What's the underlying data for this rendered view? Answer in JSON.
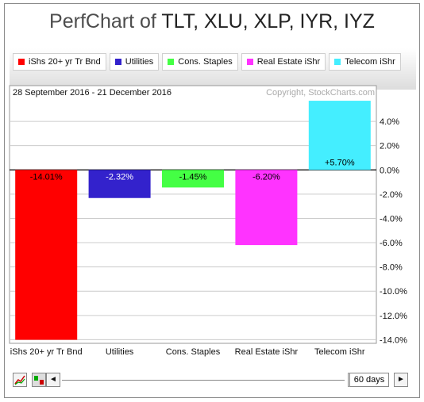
{
  "title": {
    "prefix": "PerfChart of",
    "symbols": "TLT, XLU, XLP, IYR, IYZ"
  },
  "date_range": "28 September 2016 - 21 December 2016",
  "copyright": "Copyright, StockCharts.com",
  "controls": {
    "period": "60 days",
    "left_arrow": "◄",
    "right_arrow": "►"
  },
  "chart_data": {
    "type": "bar",
    "categories": [
      "iShs 20+ yr Tr Bnd",
      "Utilities",
      "Cons. Staples",
      "Real Estate iShr",
      "Telecom iShr"
    ],
    "values": [
      -14.01,
      -2.32,
      -1.45,
      -6.2,
      5.7
    ],
    "value_labels": [
      "-14.01%",
      "-2.32%",
      "-1.45%",
      "-6.20%",
      "+5.70%"
    ],
    "colors": [
      "#ff0000",
      "#3322cc",
      "#44ff44",
      "#ff33ff",
      "#44eeff"
    ],
    "label_colors": [
      "#000000",
      "#ffffff",
      "#000000",
      "#000000",
      "#000000"
    ],
    "legend": [
      "iShs 20+ yr Tr Bnd",
      "Utilities",
      "Cons. Staples",
      "Real Estate iShr",
      "Telecom iShr"
    ],
    "yticks": [
      4,
      2,
      0,
      -2,
      -4,
      -6,
      -8,
      -10,
      -12,
      -14
    ],
    "ytick_labels": [
      "4.0%",
      "2.0%",
      "0.0%",
      "-2.0%",
      "-4.0%",
      "-6.0%",
      "-8.0%",
      "-10.0%",
      "-12.0%",
      "-14.0%"
    ],
    "ylim": [
      -14.3,
      5.9
    ],
    "grid": true,
    "legend_position": "top"
  }
}
